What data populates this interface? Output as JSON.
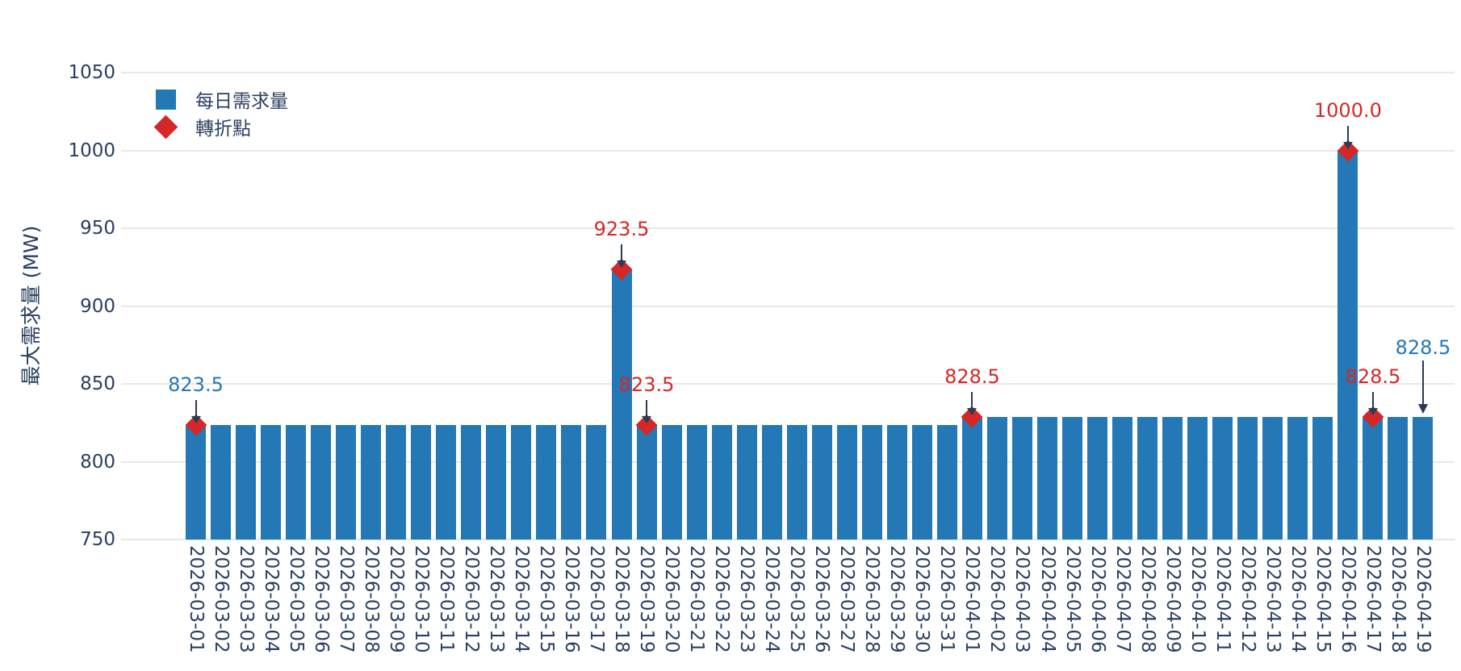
{
  "chart_data": {
    "type": "bar",
    "title": "",
    "xlabel": "",
    "ylabel": "最大需求量 (MW)",
    "ylim": [
      750,
      1050
    ],
    "yticks": [
      750,
      800,
      850,
      900,
      950,
      1000,
      1050
    ],
    "grid": true,
    "legend_position": "top-left",
    "categories": [
      "2026-03-01",
      "2026-03-02",
      "2026-03-03",
      "2026-03-04",
      "2026-03-05",
      "2026-03-06",
      "2026-03-07",
      "2026-03-08",
      "2026-03-09",
      "2026-03-10",
      "2026-03-11",
      "2026-03-12",
      "2026-03-13",
      "2026-03-14",
      "2026-03-15",
      "2026-03-16",
      "2026-03-17",
      "2026-03-18",
      "2026-03-19",
      "2026-03-20",
      "2026-03-21",
      "2026-03-22",
      "2026-03-23",
      "2026-03-24",
      "2026-03-25",
      "2026-03-26",
      "2026-03-27",
      "2026-03-28",
      "2026-03-29",
      "2026-03-30",
      "2026-03-31",
      "2026-04-01",
      "2026-04-02",
      "2026-04-03",
      "2026-04-04",
      "2026-04-05",
      "2026-04-06",
      "2026-04-07",
      "2026-04-08",
      "2026-04-09",
      "2026-04-10",
      "2026-04-11",
      "2026-04-12",
      "2026-04-13",
      "2026-04-14",
      "2026-04-15",
      "2026-04-16",
      "2026-04-17",
      "2026-04-18",
      "2026-04-19"
    ],
    "series": [
      {
        "name": "每日需求量",
        "type": "bar",
        "values": [
          823.5,
          823.5,
          823.5,
          823.5,
          823.5,
          823.5,
          823.5,
          823.5,
          823.5,
          823.5,
          823.5,
          823.5,
          823.5,
          823.5,
          823.5,
          823.5,
          823.5,
          923.5,
          823.5,
          823.5,
          823.5,
          823.5,
          823.5,
          823.5,
          823.5,
          823.5,
          823.5,
          823.5,
          823.5,
          823.5,
          823.5,
          828.5,
          828.5,
          828.5,
          828.5,
          828.5,
          828.5,
          828.5,
          828.5,
          828.5,
          828.5,
          828.5,
          828.5,
          828.5,
          828.5,
          828.5,
          1000.0,
          828.5,
          828.5,
          828.5
        ]
      }
    ],
    "turning_points": {
      "name": "轉折點",
      "points": [
        {
          "x": "2026-03-01",
          "y": 823.5
        },
        {
          "x": "2026-03-18",
          "y": 923.5
        },
        {
          "x": "2026-03-19",
          "y": 823.5
        },
        {
          "x": "2026-04-01",
          "y": 828.5
        },
        {
          "x": "2026-04-16",
          "y": 1000.0
        },
        {
          "x": "2026-04-17",
          "y": 828.5
        }
      ]
    },
    "annotations": [
      {
        "x": "2026-03-01",
        "text": "823.5",
        "color_role": "bar",
        "arrow": "short"
      },
      {
        "x": "2026-03-18",
        "text": "923.5",
        "color_role": "diamond",
        "arrow": "short"
      },
      {
        "x": "2026-03-19",
        "text": "823.5",
        "color_role": "diamond",
        "arrow": "short"
      },
      {
        "x": "2026-04-01",
        "text": "828.5",
        "color_role": "diamond",
        "arrow": "short"
      },
      {
        "x": "2026-04-16",
        "text": "1000.0",
        "color_role": "diamond",
        "arrow": "short"
      },
      {
        "x": "2026-04-17",
        "text": "828.5",
        "color_role": "diamond",
        "arrow": "short"
      },
      {
        "x": "2026-04-19",
        "text": "828.5",
        "color_role": "bar",
        "arrow": "long"
      }
    ],
    "legend": [
      {
        "label": "每日需求量",
        "marker": "square",
        "color_role": "bar"
      },
      {
        "label": "轉折點",
        "marker": "diamond",
        "color_role": "diamond"
      }
    ],
    "colors": {
      "bar": "#2478b5",
      "diamond": "#d62728",
      "axis_text": "#2a3f5f",
      "grid": "#e8e8e8",
      "arrow": "#2b3a55",
      "background": "#ffffff"
    }
  }
}
